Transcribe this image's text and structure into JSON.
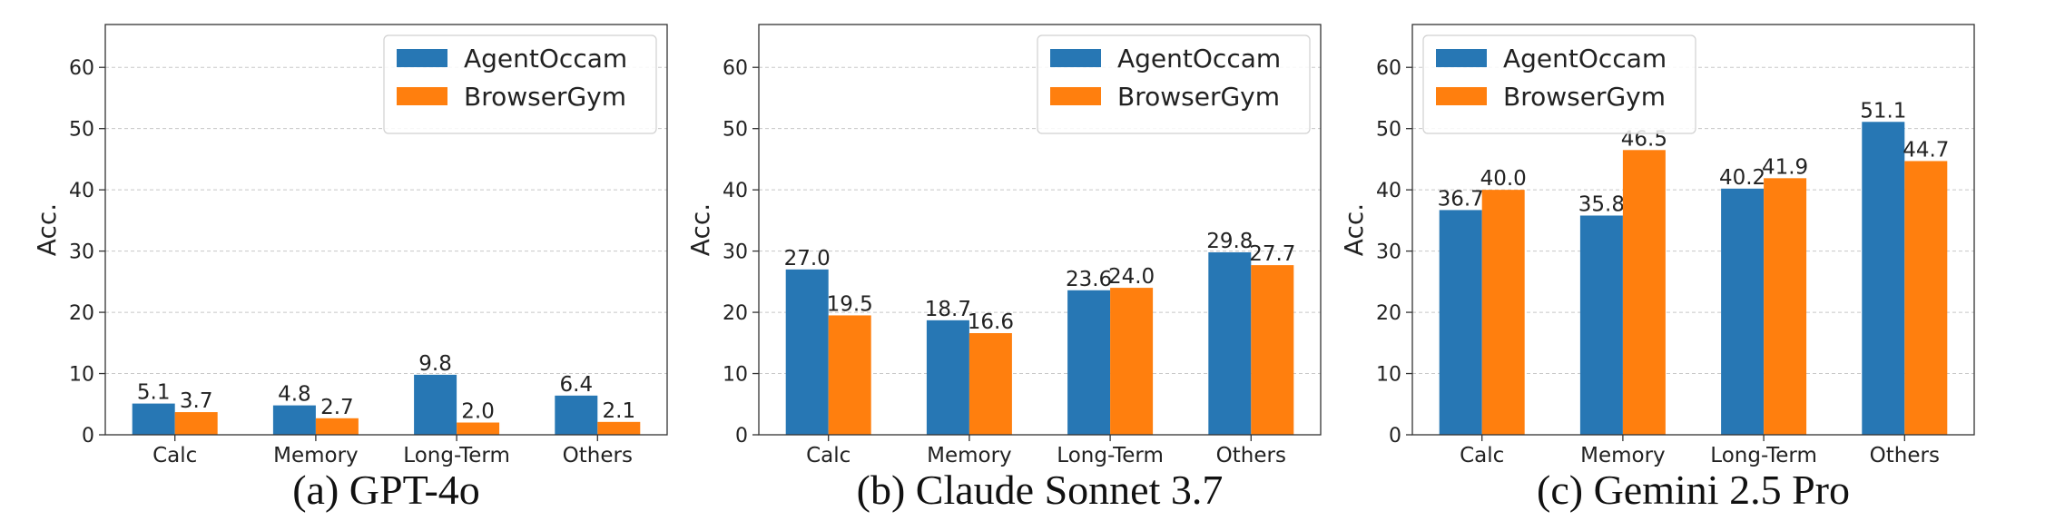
{
  "figure": {
    "series_colors": {
      "AgentOccam": "#2777b4",
      "BrowserGym": "#ff7f0e"
    }
  },
  "chart_data": [
    {
      "type": "bar",
      "caption": "(a) GPT-4o",
      "categories": [
        "Calc",
        "Memory",
        "Long-Term",
        "Others"
      ],
      "series": [
        {
          "name": "AgentOccam",
          "values": [
            5.1,
            4.8,
            9.8,
            6.4
          ],
          "labels": [
            "5.1",
            "4.8",
            "9.8",
            "6.4"
          ]
        },
        {
          "name": "BrowserGym",
          "values": [
            3.7,
            2.7,
            2.0,
            2.1
          ],
          "labels": [
            "3.7",
            "2.7",
            "2.0",
            "2.1"
          ]
        }
      ],
      "ylabel": "Acc.",
      "ylim": [
        0,
        67
      ],
      "yticks": [
        0,
        10,
        20,
        30,
        40,
        50,
        60
      ],
      "ytick_labels": [
        "0",
        "10",
        "20",
        "30",
        "40",
        "50",
        "60"
      ],
      "grid": "y-dashed",
      "legend": "top-right"
    },
    {
      "type": "bar",
      "caption": "(b) Claude Sonnet 3.7",
      "categories": [
        "Calc",
        "Memory",
        "Long-Term",
        "Others"
      ],
      "series": [
        {
          "name": "AgentOccam",
          "values": [
            27.0,
            18.7,
            23.6,
            29.8
          ],
          "labels": [
            "27.0",
            "18.7",
            "23.6",
            "29.8"
          ]
        },
        {
          "name": "BrowserGym",
          "values": [
            19.5,
            16.6,
            24.0,
            27.7
          ],
          "labels": [
            "19.5",
            "16.6",
            "24.0",
            "27.7"
          ]
        }
      ],
      "ylabel": "Acc.",
      "ylim": [
        0,
        67
      ],
      "yticks": [
        0,
        10,
        20,
        30,
        40,
        50,
        60
      ],
      "ytick_labels": [
        "0",
        "10",
        "20",
        "30",
        "40",
        "50",
        "60"
      ],
      "grid": "y-dashed",
      "legend": "top-right"
    },
    {
      "type": "bar",
      "caption": "(c) Gemini 2.5 Pro",
      "categories": [
        "Calc",
        "Memory",
        "Long-Term",
        "Others"
      ],
      "series": [
        {
          "name": "AgentOccam",
          "values": [
            36.7,
            35.8,
            40.2,
            51.1
          ],
          "labels": [
            "36.7",
            "35.8",
            "40.2",
            "51.1"
          ]
        },
        {
          "name": "BrowserGym",
          "values": [
            40.0,
            46.5,
            41.9,
            44.7
          ],
          "labels": [
            "40.0",
            "46.5",
            "41.9",
            "44.7"
          ]
        }
      ],
      "ylabel": "Acc.",
      "ylim": [
        0,
        67
      ],
      "yticks": [
        0,
        10,
        20,
        30,
        40,
        50,
        60
      ],
      "ytick_labels": [
        "0",
        "10",
        "20",
        "30",
        "40",
        "50",
        "60"
      ],
      "grid": "y-dashed",
      "legend": "top-left"
    }
  ]
}
